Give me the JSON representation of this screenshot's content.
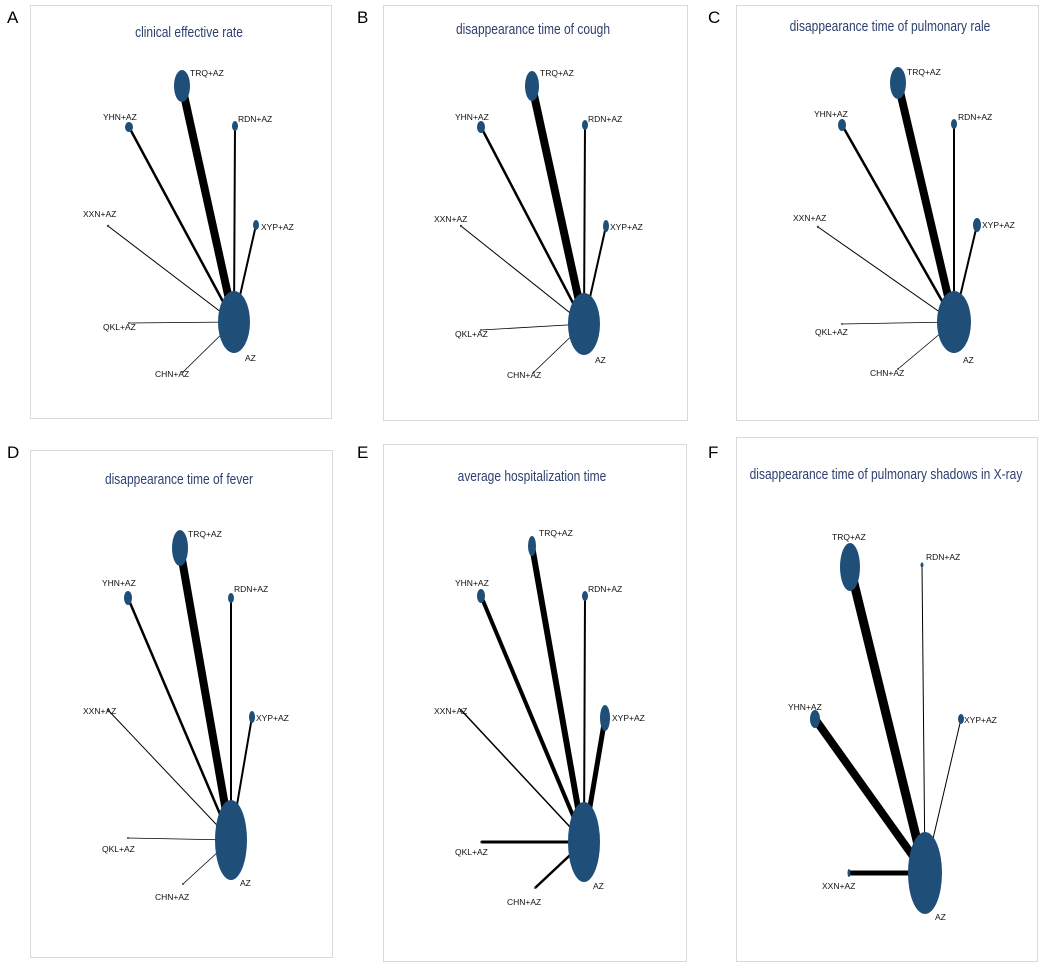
{
  "figure": {
    "node_color": "#1f4e79",
    "edge_color": "#000000",
    "title_color": "#2e3f6e",
    "panels": [
      {
        "letter": "A",
        "title": "clinical effective rate",
        "nodes": [
          {
            "id": "AZ",
            "label": "AZ"
          },
          {
            "id": "TRQ",
            "label": "TRQ+AZ"
          },
          {
            "id": "YHN",
            "label": "YHN+AZ"
          },
          {
            "id": "RDN",
            "label": "RDN+AZ"
          },
          {
            "id": "XYP",
            "label": "XYP+AZ"
          },
          {
            "id": "XXN",
            "label": "XXN+AZ"
          },
          {
            "id": "QKL",
            "label": "QKL+AZ"
          },
          {
            "id": "CHN",
            "label": "CHN+AZ"
          }
        ],
        "edges": [
          {
            "from": "TRQ",
            "to": "AZ"
          },
          {
            "from": "YHN",
            "to": "AZ"
          },
          {
            "from": "RDN",
            "to": "AZ"
          },
          {
            "from": "XYP",
            "to": "AZ"
          },
          {
            "from": "XXN",
            "to": "AZ"
          },
          {
            "from": "QKL",
            "to": "AZ"
          },
          {
            "from": "CHN",
            "to": "AZ"
          }
        ]
      },
      {
        "letter": "B",
        "title": "disappearance time of cough",
        "nodes": [
          {
            "id": "AZ",
            "label": "AZ"
          },
          {
            "id": "TRQ",
            "label": "TRQ+AZ"
          },
          {
            "id": "YHN",
            "label": "YHN+AZ"
          },
          {
            "id": "RDN",
            "label": "RDN+AZ"
          },
          {
            "id": "XYP",
            "label": "XYP+AZ"
          },
          {
            "id": "XXN",
            "label": "XXN+AZ"
          },
          {
            "id": "QKL",
            "label": "QKL+AZ"
          },
          {
            "id": "CHN",
            "label": "CHN+AZ"
          }
        ],
        "edges": [
          {
            "from": "TRQ",
            "to": "AZ"
          },
          {
            "from": "YHN",
            "to": "AZ"
          },
          {
            "from": "RDN",
            "to": "AZ"
          },
          {
            "from": "XYP",
            "to": "AZ"
          },
          {
            "from": "XXN",
            "to": "AZ"
          },
          {
            "from": "QKL",
            "to": "AZ"
          },
          {
            "from": "CHN",
            "to": "AZ"
          }
        ]
      },
      {
        "letter": "C",
        "title": "disappearance time of pulmonary rale",
        "nodes": [
          {
            "id": "AZ",
            "label": "AZ"
          },
          {
            "id": "TRQ",
            "label": "TRQ+AZ"
          },
          {
            "id": "YHN",
            "label": "YHN+AZ"
          },
          {
            "id": "RDN",
            "label": "RDN+AZ"
          },
          {
            "id": "XYP",
            "label": "XYP+AZ"
          },
          {
            "id": "XXN",
            "label": "XXN+AZ"
          },
          {
            "id": "QKL",
            "label": "QKL+AZ"
          },
          {
            "id": "CHN",
            "label": "CHN+AZ"
          }
        ],
        "edges": [
          {
            "from": "TRQ",
            "to": "AZ"
          },
          {
            "from": "YHN",
            "to": "AZ"
          },
          {
            "from": "RDN",
            "to": "AZ"
          },
          {
            "from": "XYP",
            "to": "AZ"
          },
          {
            "from": "XXN",
            "to": "AZ"
          },
          {
            "from": "QKL",
            "to": "AZ"
          },
          {
            "from": "CHN",
            "to": "AZ"
          }
        ]
      },
      {
        "letter": "D",
        "title": "disappearance time of fever",
        "nodes": [
          {
            "id": "AZ",
            "label": "AZ"
          },
          {
            "id": "TRQ",
            "label": "TRQ+AZ"
          },
          {
            "id": "YHN",
            "label": "YHN+AZ"
          },
          {
            "id": "RDN",
            "label": "RDN+AZ"
          },
          {
            "id": "XYP",
            "label": "XYP+AZ"
          },
          {
            "id": "XXN",
            "label": "XXN+AZ"
          },
          {
            "id": "QKL",
            "label": "QKL+AZ"
          },
          {
            "id": "CHN",
            "label": "CHN+AZ"
          }
        ],
        "edges": [
          {
            "from": "TRQ",
            "to": "AZ"
          },
          {
            "from": "YHN",
            "to": "AZ"
          },
          {
            "from": "RDN",
            "to": "AZ"
          },
          {
            "from": "XYP",
            "to": "AZ"
          },
          {
            "from": "XXN",
            "to": "AZ"
          },
          {
            "from": "QKL",
            "to": "AZ"
          },
          {
            "from": "CHN",
            "to": "AZ"
          }
        ]
      },
      {
        "letter": "E",
        "title": "average hospitalization time",
        "nodes": [
          {
            "id": "AZ",
            "label": "AZ"
          },
          {
            "id": "TRQ",
            "label": "TRQ+AZ"
          },
          {
            "id": "YHN",
            "label": "YHN+AZ"
          },
          {
            "id": "RDN",
            "label": "RDN+AZ"
          },
          {
            "id": "XYP",
            "label": "XYP+AZ"
          },
          {
            "id": "XXN",
            "label": "XXN+AZ"
          },
          {
            "id": "QKL",
            "label": "QKL+AZ"
          },
          {
            "id": "CHN",
            "label": "CHN+AZ"
          }
        ],
        "edges": [
          {
            "from": "TRQ",
            "to": "AZ"
          },
          {
            "from": "YHN",
            "to": "AZ"
          },
          {
            "from": "RDN",
            "to": "AZ"
          },
          {
            "from": "XYP",
            "to": "AZ"
          },
          {
            "from": "XXN",
            "to": "AZ"
          },
          {
            "from": "QKL",
            "to": "AZ"
          },
          {
            "from": "CHN",
            "to": "AZ"
          }
        ]
      },
      {
        "letter": "F",
        "title": "disappearance time of pulmonary shadows in X-ray",
        "nodes": [
          {
            "id": "AZ",
            "label": "AZ"
          },
          {
            "id": "TRQ",
            "label": "TRQ+AZ"
          },
          {
            "id": "RDN",
            "label": "RDN+AZ"
          },
          {
            "id": "YHN",
            "label": "YHN+AZ"
          },
          {
            "id": "XYP",
            "label": "XYP+AZ"
          },
          {
            "id": "XXN",
            "label": "XXN+AZ"
          }
        ],
        "edges": [
          {
            "from": "TRQ",
            "to": "AZ"
          },
          {
            "from": "RDN",
            "to": "AZ"
          },
          {
            "from": "YHN",
            "to": "AZ"
          },
          {
            "from": "XYP",
            "to": "AZ"
          },
          {
            "from": "XXN",
            "to": "AZ"
          }
        ]
      }
    ]
  }
}
